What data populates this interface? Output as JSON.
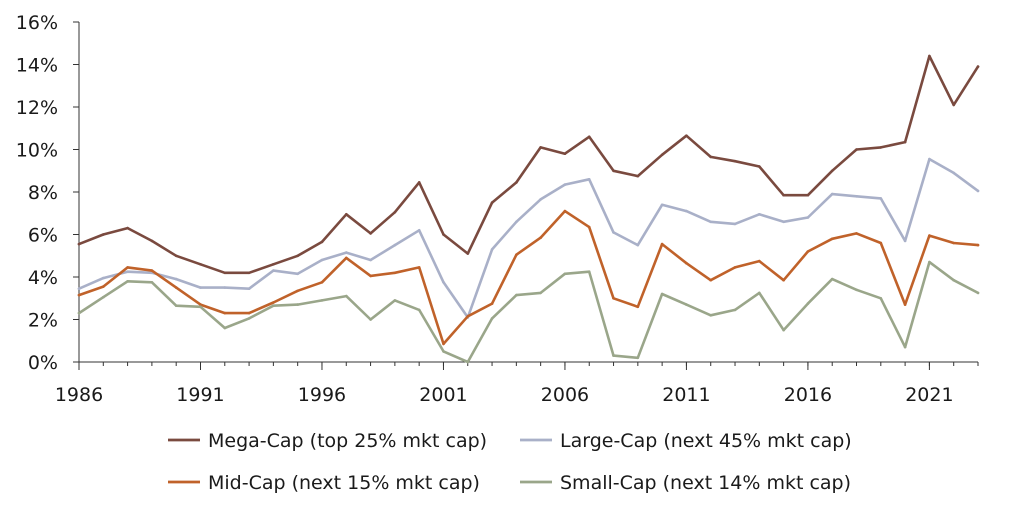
{
  "chart_data": {
    "type": "line",
    "title": "",
    "xlabel": "",
    "ylabel": "",
    "xlim": [
      1986,
      2023
    ],
    "ylim": [
      0,
      16
    ],
    "x_ticks": [
      1986,
      1991,
      1996,
      2001,
      2006,
      2011,
      2016,
      2021
    ],
    "x_tick_labels": [
      "1986",
      "1991",
      "1996",
      "2001",
      "2006",
      "2011",
      "2016",
      "2021"
    ],
    "y_ticks": [
      0,
      2,
      4,
      6,
      8,
      10,
      12,
      14,
      16
    ],
    "y_tick_labels": [
      "0%",
      "2%",
      "4%",
      "6%",
      "8%",
      "10%",
      "12%",
      "14%",
      "16%"
    ],
    "grid": false,
    "legend_position": "bottom",
    "x": [
      1986,
      1987,
      1988,
      1989,
      1990,
      1991,
      1992,
      1993,
      1994,
      1995,
      1996,
      1997,
      1998,
      1999,
      2000,
      2001,
      2002,
      2003,
      2004,
      2005,
      2006,
      2007,
      2008,
      2009,
      2010,
      2011,
      2012,
      2013,
      2014,
      2015,
      2016,
      2017,
      2018,
      2019,
      2020,
      2021,
      2022,
      2023
    ],
    "series": [
      {
        "name": "Mega-Cap (top 25% mkt cap)",
        "color": "#7a4a3f",
        "values": [
          5.55,
          6.0,
          6.3,
          5.7,
          5.0,
          4.6,
          4.2,
          4.2,
          4.6,
          5.0,
          5.65,
          6.95,
          6.05,
          7.05,
          8.45,
          6.0,
          5.1,
          7.5,
          8.45,
          10.1,
          9.8,
          10.6,
          9.0,
          8.75,
          9.75,
          10.65,
          9.65,
          9.45,
          9.2,
          7.85,
          7.85,
          9.0,
          10.0,
          10.1,
          10.35,
          14.4,
          12.1,
          13.9
        ]
      },
      {
        "name": "Large-Cap (next 45% mkt cap)",
        "color": "#a9b0c8",
        "values": [
          3.45,
          3.95,
          4.25,
          4.2,
          3.9,
          3.5,
          3.5,
          3.45,
          4.3,
          4.15,
          4.8,
          5.15,
          4.8,
          5.5,
          6.2,
          3.75,
          2.1,
          5.3,
          6.6,
          7.65,
          8.35,
          8.6,
          6.1,
          5.5,
          7.4,
          7.1,
          6.6,
          6.5,
          6.95,
          6.6,
          6.8,
          7.9,
          7.8,
          7.7,
          5.7,
          9.55,
          8.9,
          8.05
        ]
      },
      {
        "name": "Mid-Cap (next 15% mkt cap)",
        "color": "#c0622a",
        "values": [
          3.15,
          3.55,
          4.45,
          4.3,
          3.5,
          2.7,
          2.3,
          2.3,
          2.8,
          3.35,
          3.75,
          4.9,
          4.05,
          4.2,
          4.45,
          0.85,
          2.15,
          2.75,
          5.05,
          5.85,
          7.1,
          6.35,
          3.0,
          2.6,
          5.55,
          4.65,
          3.85,
          4.45,
          4.75,
          3.85,
          5.2,
          5.8,
          6.05,
          5.6,
          2.7,
          5.95,
          5.6,
          5.5
        ]
      },
      {
        "name": "Small-Cap (next 14% mkt cap)",
        "color": "#9aa68a",
        "values": [
          2.3,
          3.05,
          3.8,
          3.75,
          2.65,
          2.6,
          1.6,
          2.05,
          2.65,
          2.7,
          2.9,
          3.1,
          2.0,
          2.9,
          2.45,
          0.5,
          0.0,
          2.05,
          3.15,
          3.25,
          4.15,
          4.25,
          0.3,
          0.2,
          3.2,
          2.7,
          2.2,
          2.45,
          3.25,
          1.5,
          2.75,
          3.9,
          3.4,
          3.0,
          0.7,
          4.7,
          3.85,
          3.25
        ]
      }
    ]
  }
}
